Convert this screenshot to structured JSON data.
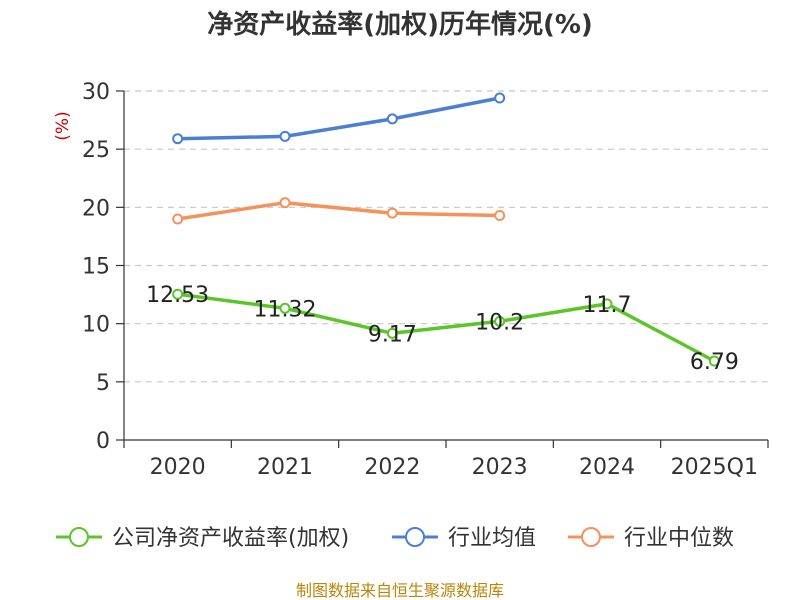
{
  "chart_data": {
    "type": "line",
    "title": "净资产收益率(加权)历年情况(%)",
    "ylabel": "(%)",
    "xlabel": "",
    "categories": [
      "2020",
      "2021",
      "2022",
      "2023",
      "2024",
      "2025Q1"
    ],
    "ylim": [
      0,
      30
    ],
    "yticks": [
      0,
      5,
      10,
      15,
      20,
      25,
      30
    ],
    "grid": true,
    "legend_position": "bottom",
    "series": [
      {
        "name": "公司净资产收益率(加权)",
        "color": "#5cc528",
        "values": [
          12.53,
          11.32,
          9.17,
          10.2,
          11.7,
          6.79
        ],
        "labels": [
          "12.53",
          "11.32",
          "9.17",
          "10.2",
          "11.7",
          "6.79"
        ]
      },
      {
        "name": "行业均值",
        "color": "#4a7fd4",
        "values": [
          25.9,
          26.1,
          27.6,
          29.4,
          null,
          null
        ]
      },
      {
        "name": "行业中位数",
        "color": "#f5915b",
        "values": [
          19.0,
          20.4,
          19.5,
          19.3,
          null,
          null
        ]
      }
    ]
  },
  "source": "制图数据来自恒生聚源数据库"
}
